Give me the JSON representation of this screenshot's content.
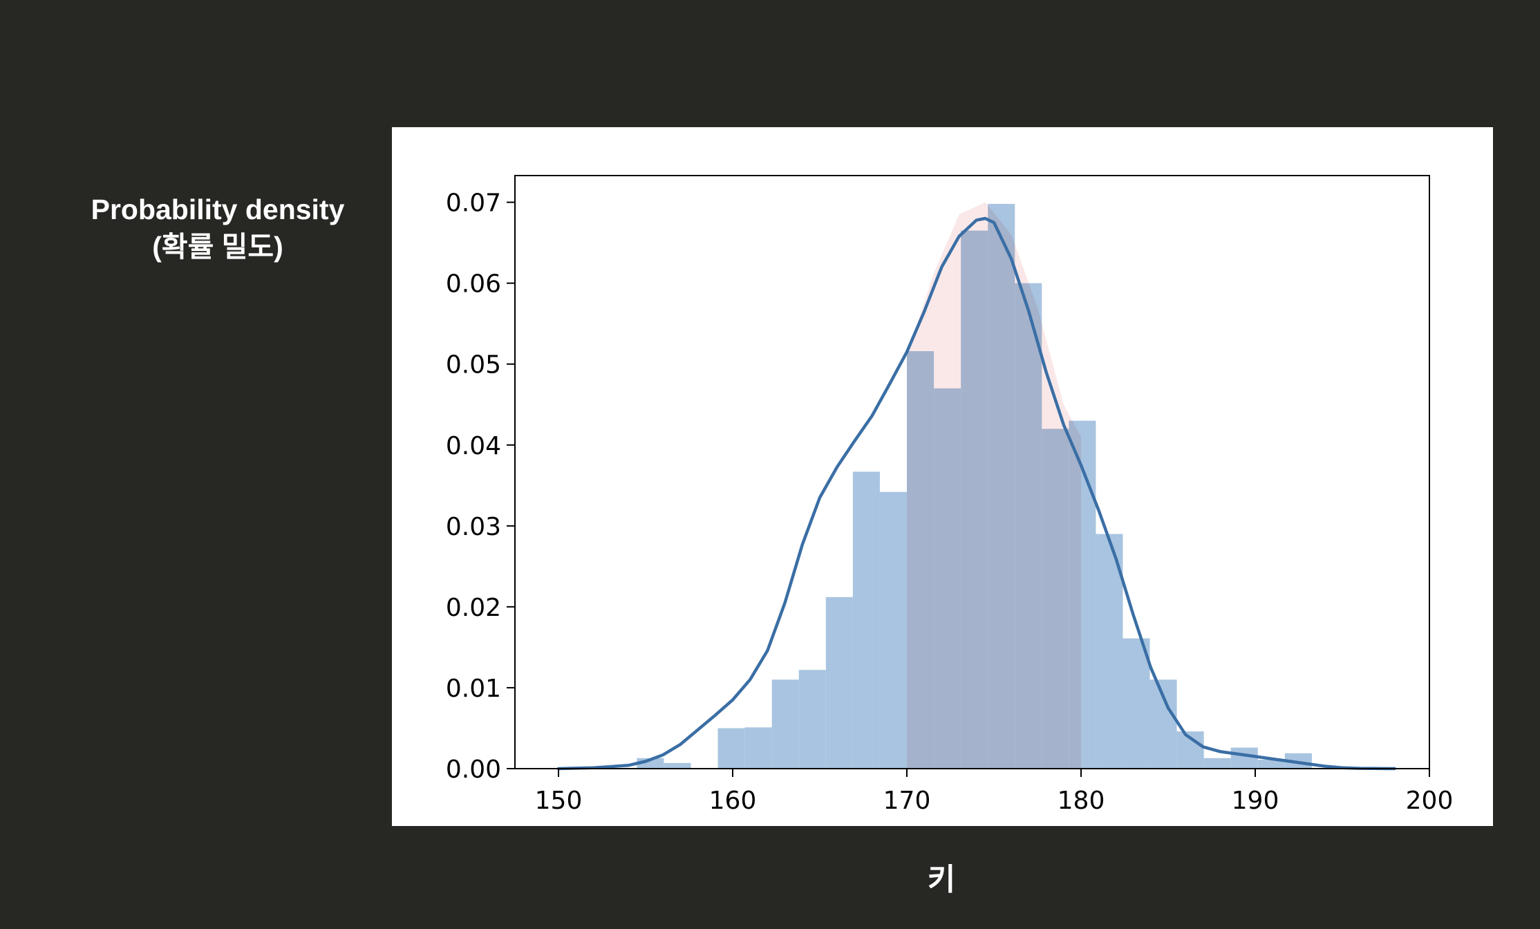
{
  "ylabel_lines": [
    "Probability density",
    "(확률 밀도)"
  ],
  "xlabel": "키",
  "chart_data": {
    "type": "bar",
    "title": "",
    "xlabel": "키",
    "ylabel": "Probability density (확률 밀도)",
    "xlim": [
      147.5,
      200
    ],
    "ylim": [
      0,
      0.0733
    ],
    "xticks": [
      150,
      160,
      170,
      180,
      190,
      200
    ],
    "yticks": [
      0.0,
      0.01,
      0.02,
      0.03,
      0.04,
      0.05,
      0.06,
      0.07
    ],
    "xtick_labels": [
      "150",
      "160",
      "170",
      "180",
      "190",
      "200"
    ],
    "ytick_labels": [
      "0.00",
      "0.01",
      "0.02",
      "0.03",
      "0.04",
      "0.05",
      "0.06",
      "0.07"
    ],
    "grid": false,
    "histogram": {
      "bin_width": 1.55,
      "bin_edges_start": 154.5,
      "values": [
        0.0013,
        0.0007,
        0.0,
        0.005,
        0.0051,
        0.011,
        0.0122,
        0.0212,
        0.0367,
        0.0342,
        0.0516,
        0.047,
        0.0665,
        0.0698,
        0.06,
        0.042,
        0.043,
        0.029,
        0.0161,
        0.011,
        0.0046,
        0.0013,
        0.0026,
        0.0011,
        0.0019
      ],
      "color": "#a8c4e0"
    },
    "highlight": {
      "range": [
        170,
        180
      ],
      "x": [
        170,
        171.5,
        173,
        174.5,
        176,
        177.5,
        179,
        180
      ],
      "values": [
        0.051,
        0.061,
        0.0685,
        0.07,
        0.066,
        0.057,
        0.045,
        0.041
      ],
      "color": "#f5d6d6"
    },
    "kde": {
      "color": "#3a6ea5",
      "x": [
        150,
        152,
        154,
        155,
        156,
        157,
        158,
        159,
        160,
        161,
        162,
        163,
        164,
        165,
        166,
        167,
        168,
        169,
        170,
        171,
        172,
        173,
        174,
        174.5,
        175,
        176,
        177,
        178,
        179,
        180,
        181,
        182,
        183,
        184,
        185,
        186,
        187,
        188,
        189,
        190,
        191,
        192,
        193,
        194,
        195,
        196,
        198
      ],
      "y": [
        0.0,
        0.0001,
        0.0004,
        0.0009,
        0.0017,
        0.003,
        0.0048,
        0.0066,
        0.0085,
        0.011,
        0.0146,
        0.0205,
        0.0277,
        0.0335,
        0.0373,
        0.0405,
        0.0436,
        0.0475,
        0.0515,
        0.0565,
        0.062,
        0.0658,
        0.0678,
        0.068,
        0.0675,
        0.063,
        0.0565,
        0.049,
        0.0425,
        0.0375,
        0.032,
        0.026,
        0.019,
        0.0125,
        0.0075,
        0.0042,
        0.0027,
        0.0021,
        0.0018,
        0.0015,
        0.0012,
        0.0009,
        0.0006,
        0.0003,
        0.0001,
        3e-05,
        0.0
      ]
    }
  }
}
